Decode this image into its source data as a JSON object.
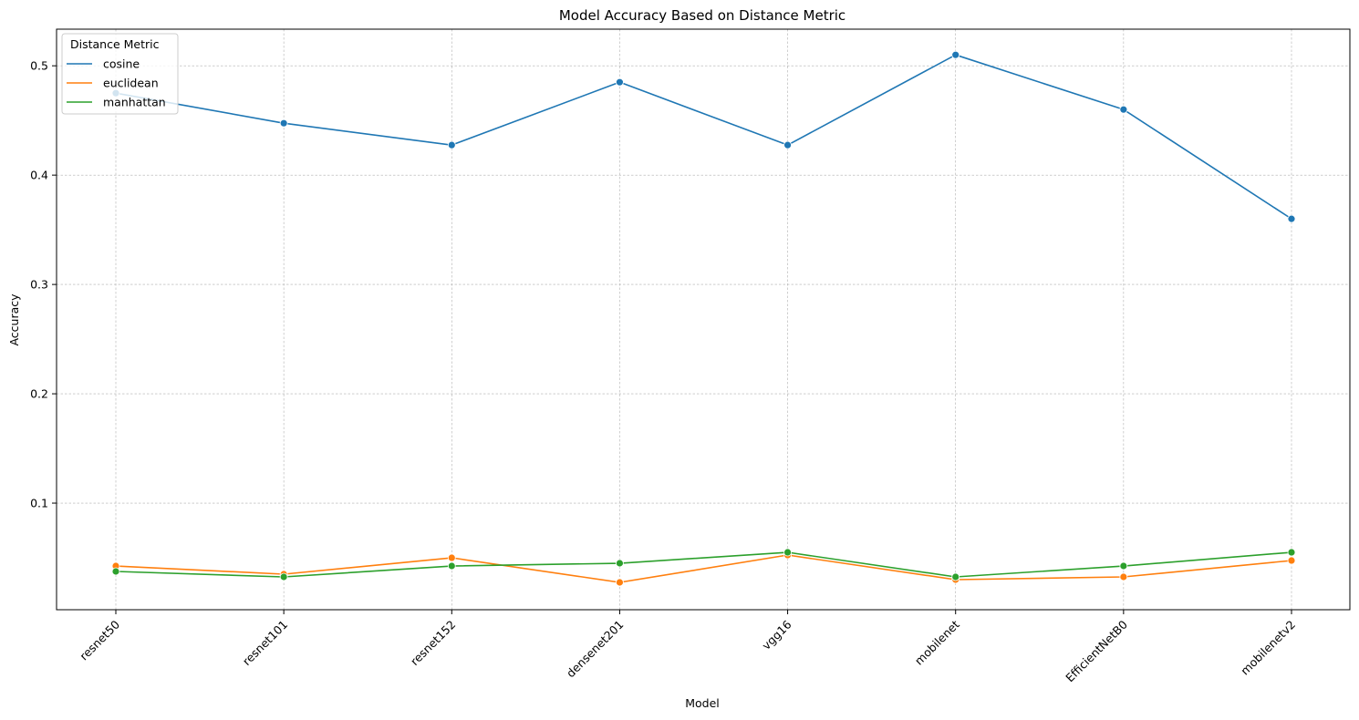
{
  "chart_data": {
    "type": "line",
    "title": "Model Accuracy Based on Distance Metric",
    "xlabel": "Model",
    "ylabel": "Accuracy",
    "categories": [
      "resnet50",
      "resnet101",
      "resnet152",
      "densenet201",
      "vgg16",
      "mobilenet",
      "EfficientNetB0",
      "mobilenetv2"
    ],
    "ylim": [
      0.0025,
      0.5335
    ],
    "yticks": [
      0.1,
      0.2,
      0.3,
      0.4,
      0.5
    ],
    "ytick_labels": [
      "0.1",
      "0.2",
      "0.3",
      "0.4",
      "0.5"
    ],
    "grid": true,
    "legend": {
      "title": "Distance Metric",
      "placement": "top-left"
    },
    "series": [
      {
        "name": "cosine",
        "color": "#1f77b4",
        "values": [
          0.475,
          0.4475,
          0.4275,
          0.485,
          0.4275,
          0.51,
          0.46,
          0.36
        ]
      },
      {
        "name": "euclidean",
        "color": "#ff7f0e",
        "values": [
          0.0425,
          0.035,
          0.05,
          0.0275,
          0.0525,
          0.03,
          0.0325,
          0.0475
        ]
      },
      {
        "name": "manhattan",
        "color": "#2ca02c",
        "values": [
          0.0375,
          0.0325,
          0.0425,
          0.045,
          0.055,
          0.0325,
          0.0425,
          0.055
        ]
      }
    ]
  }
}
